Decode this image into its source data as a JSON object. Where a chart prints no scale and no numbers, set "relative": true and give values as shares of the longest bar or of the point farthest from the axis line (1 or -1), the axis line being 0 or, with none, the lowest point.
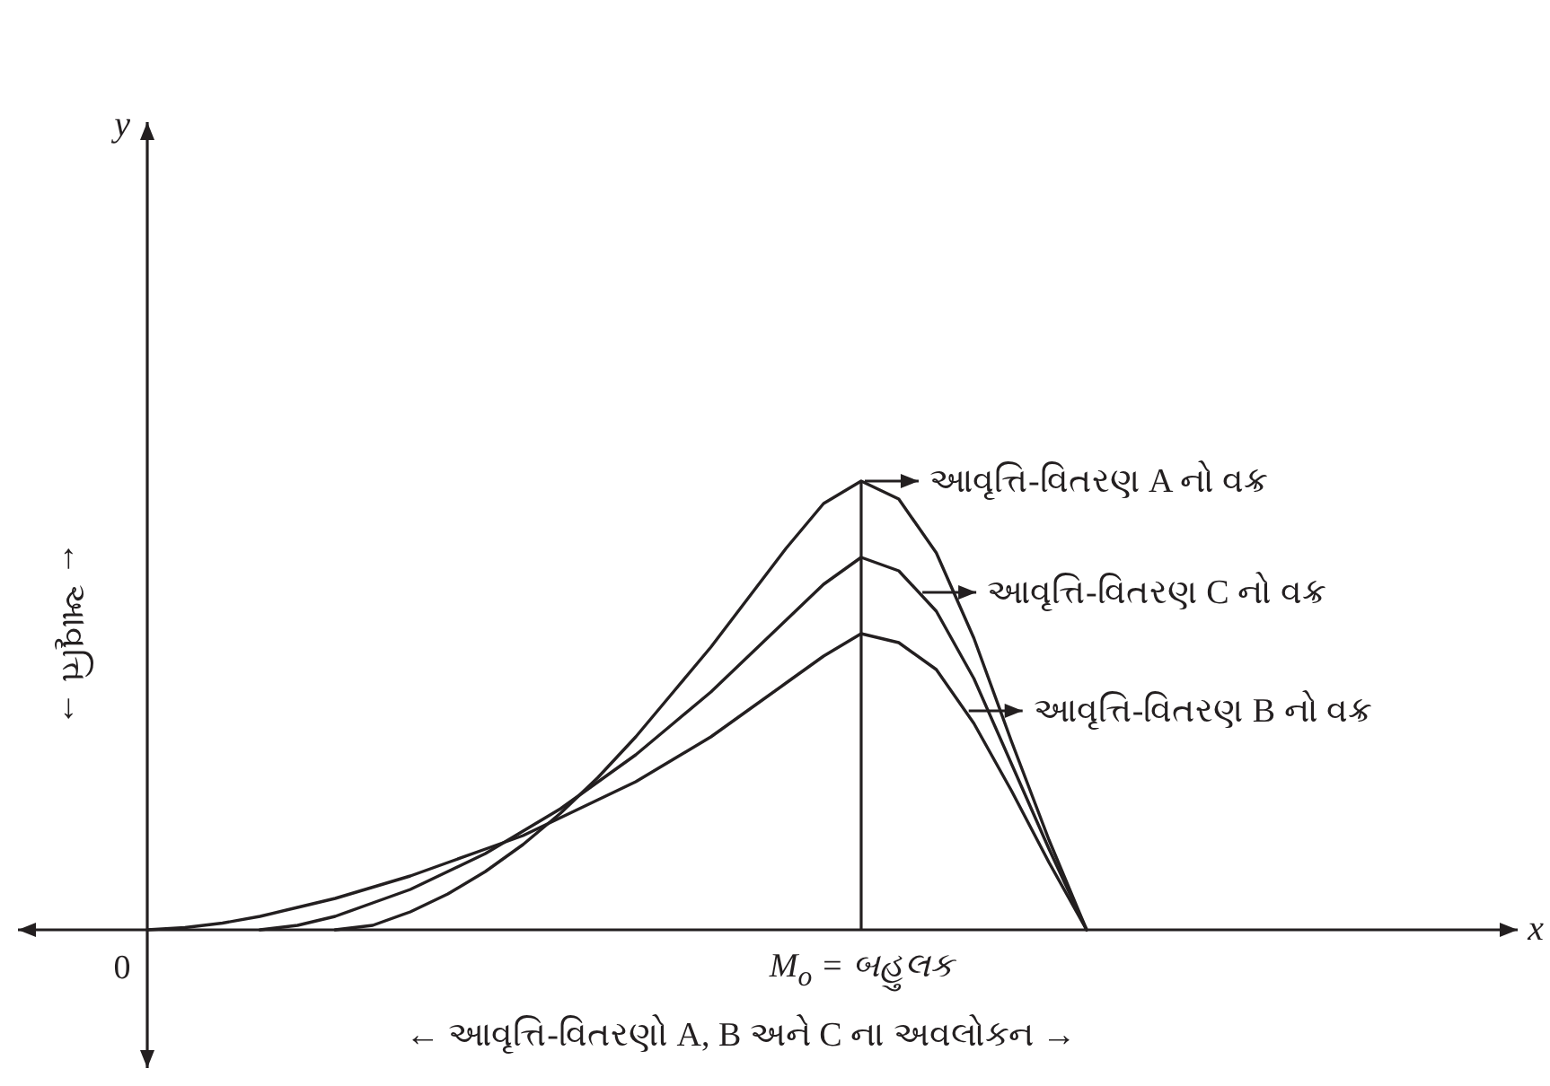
{
  "chart_data": {
    "type": "line",
    "relative": true,
    "xlabel": "← આવૃત્તિ-વિતરણો A, B અને C ના અવલોકન →",
    "ylabel": "← આવૃત્તિ →",
    "legend": "right",
    "annotations": [
      "x",
      "y",
      "0",
      "M$_{o}$ = બહુલક"
    ],
    "categories": [
      null,
      null,
      null,
      null,
      null,
      null,
      null,
      null,
      null,
      null,
      null,
      null,
      null,
      null,
      null,
      null,
      null,
      null,
      null,
      null,
      null,
      null,
      null,
      null,
      null,
      null
    ],
    "series": [
      {
        "name": "આવૃત્તિ-વિતરણ A નો વક્ર",
        "color": "#231f20",
        "values": [
          null,
          null,
          null,
          null,
          null,
          0,
          0.01,
          0.04,
          0.08,
          0.13,
          0.19,
          0.26,
          0.34,
          0.43,
          0.53,
          0.63,
          0.74,
          0.85,
          0.95,
          1,
          0.96,
          0.84,
          0.65,
          0.42,
          0.2,
          0
        ]
      },
      {
        "name": "આવૃત્તિ-વિતરણ C નો વક્ર",
        "color": "#231f20",
        "values": [
          null,
          null,
          null,
          0,
          0.01,
          0.03,
          0.06,
          0.09,
          0.13,
          0.17,
          0.22,
          0.27,
          0.33,
          0.39,
          0.46,
          0.53,
          0.61,
          0.69,
          0.77,
          0.83,
          0.8,
          0.71,
          0.56,
          0.37,
          0.18,
          0
        ]
      },
      {
        "name": "આવૃત્તિ-વિતરણ B નો વક્ર",
        "color": "#231f20",
        "values": [
          0,
          0.005,
          0.015,
          0.03,
          0.05,
          0.07,
          0.095,
          0.12,
          0.15,
          0.18,
          0.21,
          0.25,
          0.29,
          0.33,
          0.38,
          0.43,
          0.49,
          0.55,
          0.61,
          0.66,
          0.64,
          0.58,
          0.46,
          0.31,
          0.15,
          0
        ]
      }
    ]
  }
}
